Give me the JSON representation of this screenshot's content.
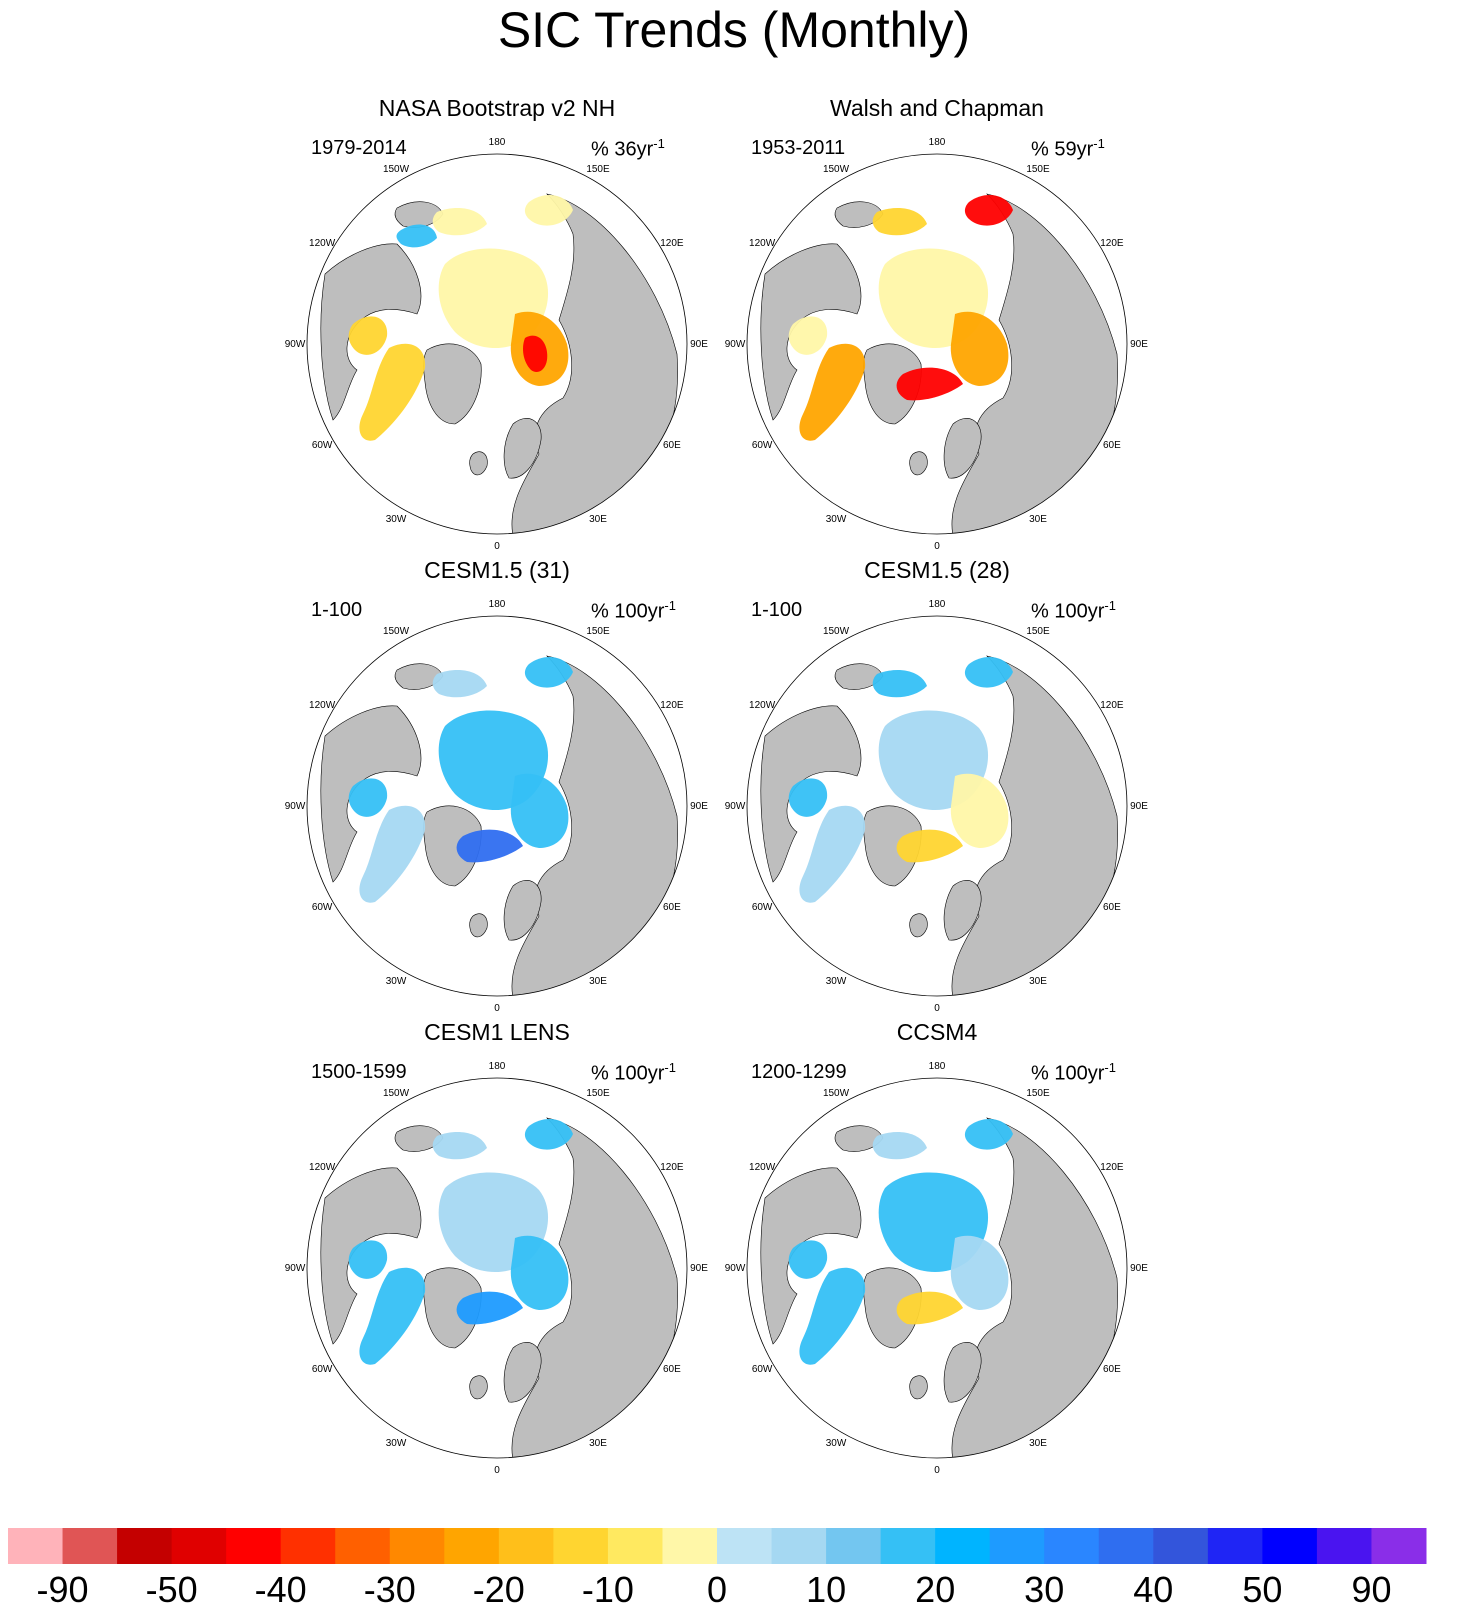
{
  "title": "SIC Trends (Monthly)",
  "longitude_labels": [
    "180",
    "150E",
    "120E",
    "90E",
    "60E",
    "30E",
    "0",
    "30W",
    "60W",
    "90W",
    "120W",
    "150W"
  ],
  "panels": [
    {
      "title": "NASA Bootstrap v2 NH",
      "period": "1979-2014",
      "unit_prefix": "% 36yr",
      "unit_exp": "-1",
      "field": [
        {
          "name": "arctic-basin-ice",
          "class": -10
        },
        {
          "name": "barents-kara-ice",
          "class": -30
        },
        {
          "name": "barents-peak",
          "class": -50
        },
        {
          "name": "hudson-bay-ice",
          "class": -20
        },
        {
          "name": "baffin-labrador-ice",
          "class": -20
        },
        {
          "name": "east-siberian-ice",
          "class": -10
        },
        {
          "name": "beaufort-ice",
          "class": 10
        },
        {
          "name": "okhotsk-ice",
          "class": -10
        }
      ]
    },
    {
      "title": "Walsh and Chapman",
      "period": "1953-2011",
      "unit_prefix": "% 59yr",
      "unit_exp": "-1",
      "field": [
        {
          "name": "arctic-basin-ice",
          "class": -10
        },
        {
          "name": "barents-kara-ice",
          "class": -30
        },
        {
          "name": "greenland-sea-ice",
          "class": -50
        },
        {
          "name": "hudson-bay-ice",
          "class": -10
        },
        {
          "name": "baffin-labrador-ice",
          "class": -30
        },
        {
          "name": "okhotsk-ice",
          "class": -50
        },
        {
          "name": "east-siberian-ice",
          "class": -20
        }
      ]
    },
    {
      "title": "CESM1.5 (31)",
      "period": "1-100",
      "unit_prefix": "% 100yr",
      "unit_exp": "-1",
      "field": [
        {
          "name": "arctic-basin-ice",
          "class": 10
        },
        {
          "name": "barents-kara-ice",
          "class": 10
        },
        {
          "name": "greenland-sea-ice",
          "class": 30
        },
        {
          "name": "hudson-bay-ice",
          "class": 10
        },
        {
          "name": "baffin-labrador-ice",
          "class": 0
        },
        {
          "name": "okhotsk-ice",
          "class": 10
        },
        {
          "name": "east-siberian-ice",
          "class": 0
        }
      ]
    },
    {
      "title": "CESM1.5 (28)",
      "period": "1-100",
      "unit_prefix": "% 100yr",
      "unit_exp": "-1",
      "field": [
        {
          "name": "arctic-basin-ice",
          "class": 0
        },
        {
          "name": "barents-kara-ice",
          "class": -10
        },
        {
          "name": "greenland-sea-ice",
          "class": -20
        },
        {
          "name": "hudson-bay-ice",
          "class": 10
        },
        {
          "name": "baffin-labrador-ice",
          "class": 0
        },
        {
          "name": "okhotsk-ice",
          "class": 10
        },
        {
          "name": "east-siberian-ice",
          "class": 10
        }
      ]
    },
    {
      "title": "CESM1 LENS",
      "period": "1500-1599",
      "unit_prefix": "% 100yr",
      "unit_exp": "-1",
      "field": [
        {
          "name": "arctic-basin-ice",
          "class": 0
        },
        {
          "name": "barents-kara-ice",
          "class": 10
        },
        {
          "name": "greenland-sea-ice",
          "class": 20
        },
        {
          "name": "hudson-bay-ice",
          "class": 10
        },
        {
          "name": "baffin-labrador-ice",
          "class": 10
        },
        {
          "name": "okhotsk-ice",
          "class": 10
        },
        {
          "name": "east-siberian-ice",
          "class": 0
        }
      ]
    },
    {
      "title": "CCSM4",
      "period": "1200-1299",
      "unit_prefix": "% 100yr",
      "unit_exp": "-1",
      "field": [
        {
          "name": "arctic-basin-ice",
          "class": 10
        },
        {
          "name": "barents-kara-ice",
          "class": 0
        },
        {
          "name": "greenland-sea-ice",
          "class": -20
        },
        {
          "name": "hudson-bay-ice",
          "class": 10
        },
        {
          "name": "baffin-labrador-ice",
          "class": 10
        },
        {
          "name": "okhotsk-ice",
          "class": 10
        },
        {
          "name": "east-siberian-ice",
          "class": 0
        }
      ]
    }
  ],
  "colorbar": {
    "colors": [
      "#FFB3BA",
      "#E05555",
      "#C40000",
      "#E00000",
      "#FF0000",
      "#FF3000",
      "#FF6000",
      "#FF8800",
      "#FFA500",
      "#FFBF1A",
      "#FFD530",
      "#FFE960",
      "#FFF7A8",
      "#BDE3F5",
      "#A5D8F2",
      "#73C6F0",
      "#35C0F5",
      "#00B4FF",
      "#1E9BFF",
      "#2A86FF",
      "#2F6EF0",
      "#3355DB",
      "#1F25F5",
      "#0000FF",
      "#4A14F0",
      "#8A2EE8"
    ],
    "labels": [
      "-90",
      "-50",
      "-40",
      "-30",
      "-20",
      "-10",
      "0",
      "10",
      "20",
      "30",
      "40",
      "50",
      "90"
    ]
  },
  "colors": {
    "land": "#BEBEBE",
    "coastline": "#000000",
    "ocean": "#FFFFFF"
  }
}
